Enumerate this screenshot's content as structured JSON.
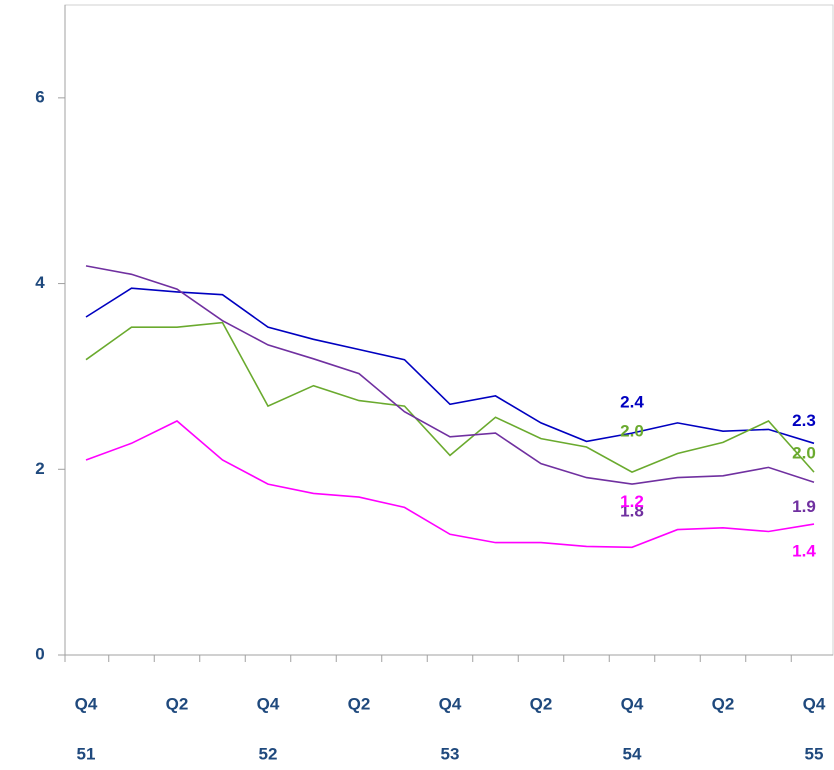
{
  "chart_data": {
    "type": "line",
    "categories": [
      "Q4",
      null,
      "Q2",
      null,
      "Q4",
      null,
      "Q2",
      null,
      "Q4",
      null,
      "Q2",
      null,
      "Q4",
      null,
      "Q2",
      null,
      "Q4"
    ],
    "year_labels": [
      "51",
      null,
      null,
      null,
      "52",
      null,
      null,
      null,
      "53",
      null,
      null,
      null,
      "54",
      null,
      null,
      null,
      "55"
    ],
    "ylim": [
      0,
      7
    ],
    "yticks": [
      0,
      2,
      4,
      6
    ],
    "series": [
      {
        "color": "#0000c0",
        "values": [
          3.64,
          3.95,
          3.91,
          3.88,
          3.53,
          3.4,
          3.29,
          3.18,
          2.7,
          2.79,
          2.5,
          2.3,
          2.39,
          2.5,
          2.41,
          2.43,
          2.28
        ],
        "value_labels": [
          null,
          null,
          null,
          null,
          null,
          null,
          null,
          null,
          null,
          null,
          null,
          null,
          "2.4",
          null,
          null,
          null,
          "2.3"
        ]
      },
      {
        "color": "#6aaa2e",
        "values": [
          3.18,
          3.53,
          3.53,
          3.58,
          2.68,
          2.9,
          2.74,
          2.68,
          2.15,
          2.56,
          2.33,
          2.24,
          1.97,
          2.17,
          2.29,
          2.52,
          1.97
        ],
        "value_labels": [
          null,
          null,
          null,
          null,
          null,
          null,
          null,
          null,
          null,
          null,
          null,
          null,
          "2.0",
          null,
          null,
          null,
          "2.0"
        ]
      },
      {
        "color": "#7030a0",
        "values": [
          4.19,
          4.1,
          3.94,
          3.6,
          3.34,
          3.19,
          3.03,
          2.62,
          2.35,
          2.39,
          2.06,
          1.91,
          1.84,
          1.91,
          1.93,
          2.02,
          1.86
        ],
        "value_labels": [
          null,
          null,
          null,
          null,
          null,
          null,
          null,
          null,
          null,
          null,
          null,
          null,
          "1.8",
          null,
          null,
          null,
          "1.9"
        ]
      },
      {
        "color": "#ff00ff",
        "values": [
          2.1,
          2.28,
          2.52,
          2.1,
          1.84,
          1.74,
          1.7,
          1.59,
          1.3,
          1.21,
          1.21,
          1.17,
          1.16,
          1.35,
          1.37,
          1.33,
          1.41
        ],
        "value_labels": [
          null,
          null,
          null,
          null,
          null,
          null,
          null,
          null,
          null,
          null,
          null,
          null,
          "1.2",
          null,
          null,
          null,
          "1.4"
        ]
      }
    ]
  }
}
